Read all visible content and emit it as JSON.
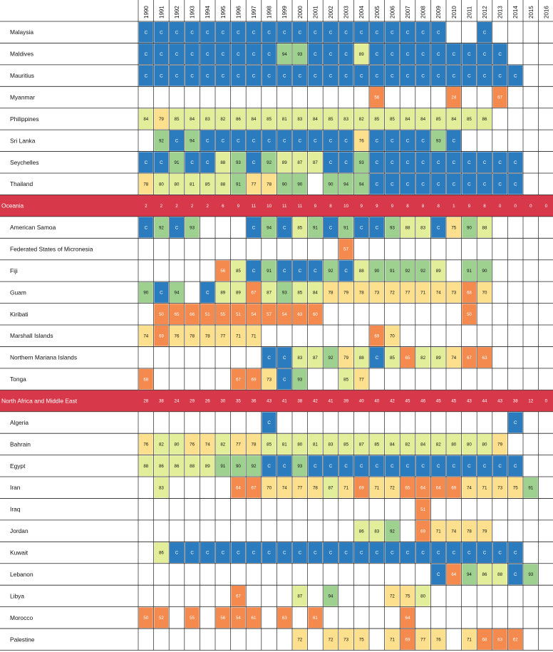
{
  "colors": {
    "complete": "#2b7bbf",
    "green": "#9ed08f",
    "yellow_green": "#e3ee9a",
    "yellow": "#fde08e",
    "orange": "#f58a4f",
    "red": "#d8394a",
    "grid": "#222222"
  },
  "chart_data": {
    "type": "heatmap",
    "x": [
      "1990",
      "1991",
      "1992",
      "1993",
      "1994",
      "1995",
      "1996",
      "1997",
      "1998",
      "1999",
      "2000",
      "2001",
      "2002",
      "2003",
      "2004",
      "2005",
      "2006",
      "2007",
      "2008",
      "2009",
      "2010",
      "2011",
      "2012",
      "2013",
      "2014",
      "2015",
      "2016"
    ],
    "complete_label": "C",
    "rows": [
      {
        "label": "Malaysia",
        "cells": [
          "C",
          "C",
          "C",
          "C",
          "C",
          "C",
          "C",
          "C",
          "C",
          "C",
          "C",
          "C",
          "C",
          "C",
          "C",
          "C",
          "C",
          "C",
          "C",
          "C",
          null,
          null,
          "C",
          null,
          null,
          null,
          null
        ]
      },
      {
        "label": "Maldives",
        "cells": [
          "C",
          "C",
          "C",
          "C",
          "C",
          "C",
          "C",
          "C",
          "C",
          94,
          93,
          "C",
          "C",
          "C",
          89,
          "C",
          "C",
          "C",
          "C",
          "C",
          "C",
          "C",
          "C",
          "C",
          null,
          null,
          null
        ]
      },
      {
        "label": "Mauritius",
        "cells": [
          "C",
          "C",
          "C",
          "C",
          "C",
          "C",
          "C",
          "C",
          "C",
          "C",
          "C",
          "C",
          "C",
          "C",
          "C",
          "C",
          "C",
          "C",
          "C",
          "C",
          "C",
          "C",
          "C",
          "C",
          "C",
          null,
          null
        ]
      },
      {
        "label": "Myanmar",
        "cells": [
          null,
          null,
          null,
          null,
          null,
          null,
          null,
          null,
          null,
          null,
          null,
          null,
          null,
          null,
          null,
          56,
          null,
          null,
          null,
          null,
          24,
          null,
          null,
          67,
          null,
          null,
          null
        ]
      },
      {
        "label": "Philippines",
        "cells": [
          84,
          79,
          85,
          84,
          83,
          82,
          86,
          84,
          85,
          81,
          83,
          84,
          85,
          83,
          82,
          85,
          85,
          84,
          84,
          85,
          84,
          85,
          86,
          null,
          null,
          null,
          null
        ]
      },
      {
        "label": "Sri Lanka",
        "cells": [
          null,
          92,
          "C",
          94,
          "C",
          "C",
          "C",
          "C",
          "C",
          "C",
          "C",
          "C",
          "C",
          "C",
          76,
          "C",
          "C",
          "C",
          "C",
          93,
          "C",
          null,
          null,
          null,
          null,
          null,
          null
        ]
      },
      {
        "label": "Seychelles",
        "cells": [
          "C",
          "C",
          91,
          "C",
          "C",
          88,
          93,
          "C",
          92,
          89,
          87,
          87,
          "C",
          "C",
          93,
          "C",
          "C",
          "C",
          "C",
          "C",
          "C",
          "C",
          "C",
          "C",
          "C",
          null,
          null
        ]
      },
      {
        "label": "Thailand",
        "cells": [
          78,
          80,
          80,
          81,
          85,
          88,
          91,
          77,
          78,
          90,
          90,
          null,
          90,
          94,
          94,
          "C",
          "C",
          "C",
          "C",
          "C",
          "C",
          "C",
          "C",
          "C",
          "C",
          null,
          null
        ]
      },
      {
        "label": "Oceania",
        "group": true,
        "cells": [
          2,
          2,
          2,
          2,
          2,
          6,
          9,
          11,
          10,
          11,
          11,
          9,
          8,
          10,
          9,
          9,
          9,
          8,
          8,
          8,
          1,
          9,
          8,
          0,
          0,
          0,
          0
        ]
      },
      {
        "label": "American Samoa",
        "cells": [
          "C",
          92,
          "C",
          93,
          null,
          null,
          null,
          "C",
          94,
          "C",
          85,
          91,
          "C",
          91,
          "C",
          "C",
          93,
          88,
          83,
          "C",
          75,
          90,
          88,
          null,
          null,
          null,
          null
        ]
      },
      {
        "label": "Federated States of Micronesia",
        "cells": [
          null,
          null,
          null,
          null,
          null,
          null,
          null,
          null,
          null,
          null,
          null,
          null,
          null,
          57,
          null,
          null,
          null,
          null,
          null,
          null,
          null,
          null,
          null,
          null,
          null,
          null,
          null
        ]
      },
      {
        "label": "Fiji",
        "cells": [
          null,
          null,
          null,
          null,
          null,
          56,
          85,
          "C",
          91,
          "C",
          "C",
          "C",
          92,
          "C",
          88,
          90,
          91,
          92,
          92,
          89,
          null,
          91,
          90,
          null,
          null,
          null,
          null
        ]
      },
      {
        "label": "Guam",
        "cells": [
          90,
          "C",
          94,
          null,
          "C",
          89,
          89,
          67,
          87,
          93,
          85,
          84,
          78,
          79,
          78,
          73,
          72,
          77,
          71,
          74,
          73,
          68,
          70,
          null,
          null,
          null,
          null
        ]
      },
      {
        "label": "Kiribati",
        "cells": [
          null,
          50,
          65,
          66,
          51,
          55,
          51,
          54,
          57,
          54,
          63,
          60,
          null,
          null,
          null,
          null,
          null,
          null,
          null,
          null,
          null,
          50,
          null,
          null,
          null,
          null,
          null
        ]
      },
      {
        "label": "Marshall Islands",
        "cells": [
          74,
          69,
          76,
          78,
          78,
          77,
          71,
          71,
          null,
          null,
          null,
          null,
          null,
          null,
          null,
          69,
          70,
          null,
          null,
          null,
          null,
          null,
          null,
          null,
          null,
          null,
          null
        ]
      },
      {
        "label": "Northern Mariana Islands",
        "cells": [
          null,
          null,
          null,
          null,
          null,
          null,
          null,
          null,
          "C",
          "C",
          83,
          87,
          92,
          79,
          88,
          "C",
          85,
          65,
          82,
          89,
          74,
          67,
          63,
          null,
          null,
          null,
          null
        ]
      },
      {
        "label": "Tonga",
        "cells": [
          68,
          null,
          null,
          null,
          null,
          null,
          67,
          69,
          73,
          "C",
          93,
          null,
          null,
          85,
          77,
          null,
          null,
          null,
          null,
          null,
          null,
          null,
          null,
          null,
          null,
          null,
          null
        ]
      },
      {
        "label": "North Africa and Middle East",
        "group": true,
        "cells": [
          28,
          38,
          24,
          29,
          26,
          30,
          35,
          36,
          43,
          41,
          38,
          42,
          41,
          39,
          40,
          40,
          42,
          45,
          46,
          45,
          45,
          43,
          44,
          43,
          38,
          12,
          0
        ]
      },
      {
        "label": "Algeria",
        "cells": [
          null,
          null,
          null,
          null,
          null,
          null,
          null,
          null,
          "C",
          null,
          null,
          null,
          null,
          null,
          null,
          null,
          null,
          null,
          null,
          null,
          null,
          null,
          null,
          null,
          "C",
          null,
          null
        ]
      },
      {
        "label": "Bahrain",
        "cells": [
          76,
          82,
          80,
          76,
          74,
          82,
          77,
          78,
          85,
          81,
          80,
          81,
          83,
          85,
          87,
          85,
          84,
          82,
          84,
          82,
          80,
          80,
          80,
          79,
          null,
          null,
          null
        ]
      },
      {
        "label": "Egypt",
        "cells": [
          88,
          86,
          86,
          88,
          89,
          91,
          90,
          92,
          "C",
          "C",
          93,
          "C",
          "C",
          "C",
          "C",
          "C",
          "C",
          "C",
          "C",
          "C",
          "C",
          "C",
          "C",
          "C",
          "C",
          null,
          null
        ]
      },
      {
        "label": "Iran",
        "cells": [
          null,
          83,
          null,
          null,
          null,
          null,
          64,
          67,
          70,
          74,
          77,
          78,
          87,
          71,
          69,
          71,
          72,
          65,
          64,
          64,
          69,
          74,
          71,
          73,
          75,
          91,
          null
        ]
      },
      {
        "label": "Iraq",
        "cells": [
          null,
          null,
          null,
          null,
          null,
          null,
          null,
          null,
          null,
          null,
          null,
          null,
          null,
          null,
          null,
          null,
          null,
          null,
          51,
          null,
          null,
          null,
          null,
          null,
          null,
          null,
          null
        ]
      },
      {
        "label": "Jordan",
        "cells": [
          null,
          null,
          null,
          null,
          null,
          null,
          null,
          null,
          null,
          null,
          null,
          null,
          null,
          null,
          86,
          83,
          92,
          null,
          69,
          71,
          74,
          78,
          79,
          null,
          null,
          null,
          null
        ]
      },
      {
        "label": "Kuwait",
        "cells": [
          null,
          86,
          "C",
          "C",
          "C",
          "C",
          "C",
          "C",
          "C",
          "C",
          "C",
          "C",
          "C",
          "C",
          "C",
          "C",
          "C",
          "C",
          "C",
          "C",
          "C",
          "C",
          "C",
          "C",
          "C",
          null,
          null
        ]
      },
      {
        "label": "Lebanon",
        "cells": [
          null,
          null,
          null,
          null,
          null,
          null,
          null,
          null,
          null,
          null,
          null,
          null,
          null,
          null,
          null,
          null,
          null,
          null,
          null,
          "C",
          64,
          94,
          86,
          88,
          "C",
          93,
          null
        ]
      },
      {
        "label": "Libya",
        "cells": [
          null,
          null,
          null,
          null,
          null,
          null,
          67,
          null,
          null,
          null,
          87,
          null,
          94,
          null,
          null,
          null,
          72,
          75,
          80,
          null,
          null,
          null,
          null,
          null,
          null,
          null,
          null
        ]
      },
      {
        "label": "Morocco",
        "cells": [
          50,
          52,
          null,
          55,
          null,
          56,
          54,
          61,
          null,
          63,
          null,
          61,
          null,
          null,
          null,
          null,
          null,
          64,
          null,
          null,
          null,
          null,
          null,
          null,
          null,
          null,
          null
        ]
      },
      {
        "label": "Palestine",
        "cells": [
          null,
          null,
          null,
          null,
          null,
          null,
          null,
          null,
          null,
          null,
          72,
          null,
          72,
          73,
          75,
          null,
          71,
          69,
          77,
          76,
          null,
          71,
          68,
          63,
          62,
          null,
          null
        ]
      }
    ]
  }
}
